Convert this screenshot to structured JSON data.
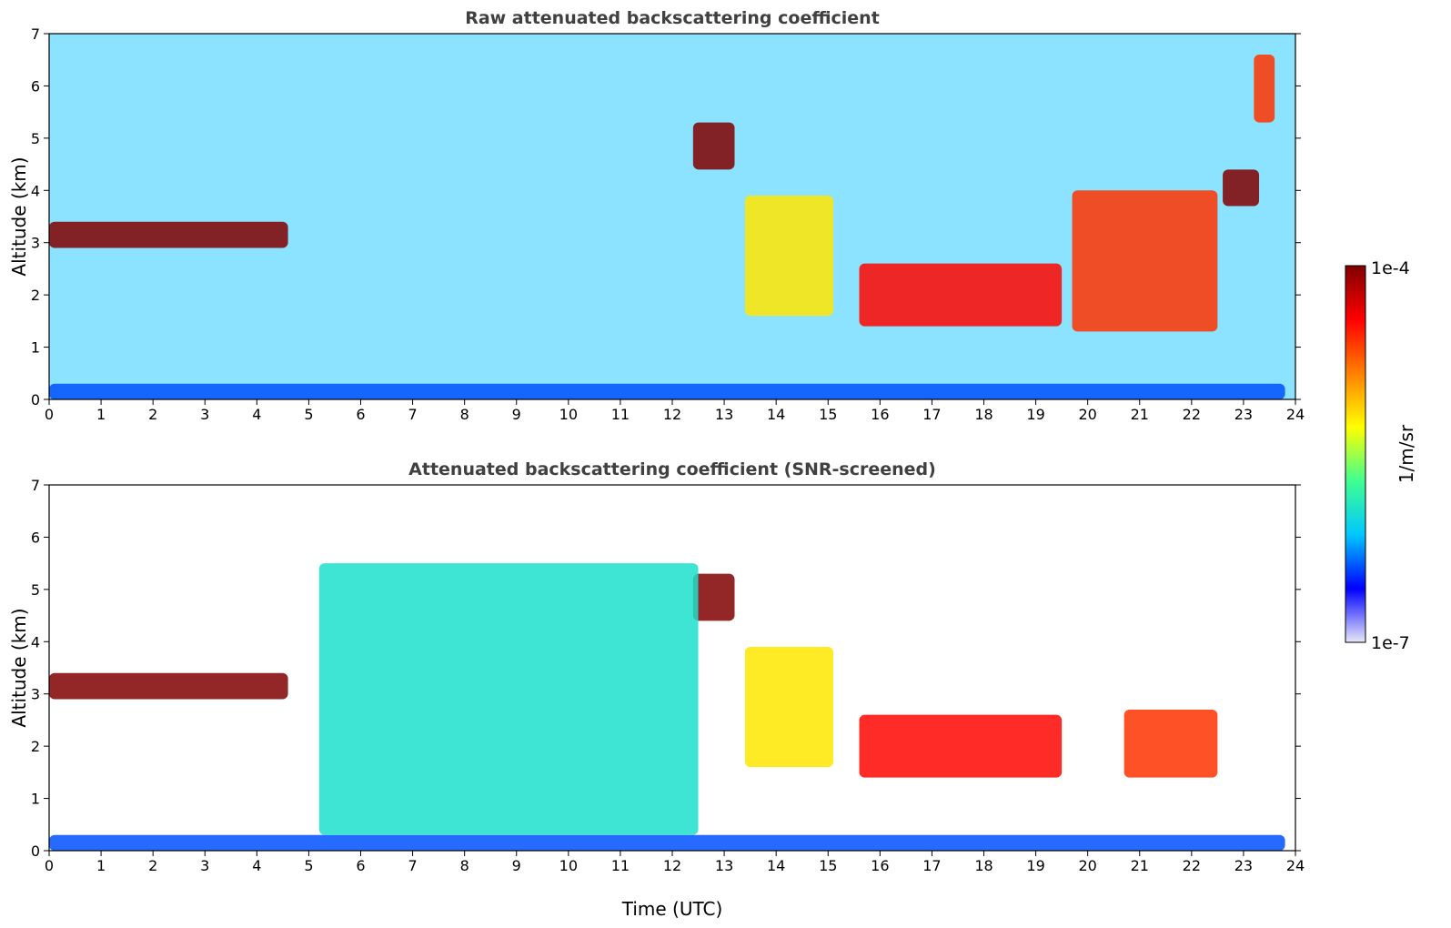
{
  "colors": {
    "jet": [
      "#e8e8f8",
      "#0000ff",
      "#00c8ff",
      "#40ff90",
      "#ffff00",
      "#ff8000",
      "#ff0000",
      "#800000"
    ],
    "axis": "#000000",
    "title": "#404040"
  },
  "chart_data": [
    {
      "type": "heatmap",
      "title": "Raw attenuated backscattering coefficient",
      "xlabel": "",
      "ylabel": "Altitude (km)",
      "xlim": [
        0,
        24
      ],
      "ylim": [
        0,
        7
      ],
      "xticks": [
        "0",
        "1",
        "2",
        "3",
        "4",
        "5",
        "6",
        "7",
        "8",
        "9",
        "10",
        "11",
        "12",
        "13",
        "14",
        "15",
        "16",
        "17",
        "18",
        "19",
        "20",
        "21",
        "22",
        "23",
        "24"
      ],
      "yticks": [
        "0",
        "1",
        "2",
        "3",
        "4",
        "5",
        "6",
        "7"
      ],
      "features": [
        {
          "name": "low-cloud-layer",
          "x": [
            0.0,
            4.6
          ],
          "y": [
            2.9,
            3.4
          ],
          "intensity": 1.0
        },
        {
          "name": "aerosol-plume",
          "x": [
            13.4,
            15.1
          ],
          "y": [
            1.6,
            3.9
          ],
          "intensity": 0.6
        },
        {
          "name": "cloud-band-mid",
          "x": [
            15.6,
            19.5
          ],
          "y": [
            1.4,
            2.6
          ],
          "intensity": 0.85
        },
        {
          "name": "cloud-band-late",
          "x": [
            19.7,
            22.5
          ],
          "y": [
            1.3,
            4.0
          ],
          "intensity": 0.8
        },
        {
          "name": "cloud-patch-13h",
          "x": [
            12.4,
            13.2
          ],
          "y": [
            4.4,
            5.3
          ],
          "intensity": 1.0
        },
        {
          "name": "cloud-patch-23h",
          "x": [
            22.6,
            23.3
          ],
          "y": [
            3.7,
            4.4
          ],
          "intensity": 1.0
        },
        {
          "name": "high-cloud-23h",
          "x": [
            23.2,
            23.6
          ],
          "y": [
            5.3,
            6.6
          ],
          "intensity": 0.8
        },
        {
          "name": "boundary-layer",
          "x": [
            0.0,
            23.8
          ],
          "y": [
            0.0,
            0.3
          ],
          "intensity": 0.2
        }
      ]
    },
    {
      "type": "heatmap",
      "title": "Attenuated backscattering coefficient (SNR-screened)",
      "xlabel": "Time (UTC)",
      "ylabel": "Altitude (km)",
      "xlim": [
        0,
        24
      ],
      "ylim": [
        0,
        7
      ],
      "xticks": [
        "0",
        "1",
        "2",
        "3",
        "4",
        "5",
        "6",
        "7",
        "8",
        "9",
        "10",
        "11",
        "12",
        "13",
        "14",
        "15",
        "16",
        "17",
        "18",
        "19",
        "20",
        "21",
        "22",
        "23",
        "24"
      ],
      "yticks": [
        "0",
        "1",
        "2",
        "3",
        "4",
        "5",
        "6",
        "7"
      ],
      "features": [
        {
          "name": "low-cloud-layer",
          "x": [
            0.0,
            4.6
          ],
          "y": [
            2.9,
            3.4
          ],
          "intensity": 1.0
        },
        {
          "name": "aerosol-plume",
          "x": [
            13.4,
            15.1
          ],
          "y": [
            1.6,
            3.9
          ],
          "intensity": 0.6
        },
        {
          "name": "cloud-band-mid",
          "x": [
            15.6,
            19.5
          ],
          "y": [
            1.4,
            2.6
          ],
          "intensity": 0.85
        },
        {
          "name": "cloud-band-late",
          "x": [
            20.7,
            22.5
          ],
          "y": [
            1.4,
            2.7
          ],
          "intensity": 0.8
        },
        {
          "name": "cloud-patch-13h",
          "x": [
            12.4,
            13.2
          ],
          "y": [
            4.4,
            5.3
          ],
          "intensity": 1.0
        },
        {
          "name": "boundary-layer",
          "x": [
            0.0,
            23.8
          ],
          "y": [
            0.0,
            0.3
          ],
          "intensity": 0.2
        },
        {
          "name": "aerosol-haze",
          "x": [
            5.2,
            12.5
          ],
          "y": [
            0.3,
            5.5
          ],
          "intensity": 0.35
        }
      ]
    }
  ],
  "colorbar": {
    "label": "1/m/sr",
    "max_label": "1e-4",
    "min_label": "1e-7"
  }
}
